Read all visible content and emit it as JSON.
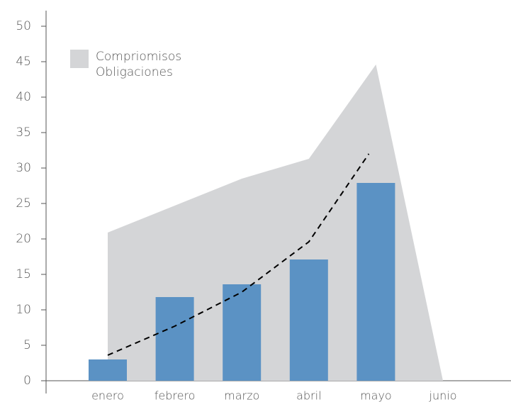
{
  "chart_data": {
    "type": "bar",
    "categories": [
      "enero",
      "febrero",
      "marzo",
      "abril",
      "mayo",
      "junio"
    ],
    "series": [
      {
        "name": "Compriomisos",
        "type": "area",
        "color": "#d4d5d7",
        "values": [
          20.9,
          24.7,
          28.5,
          31.3,
          44.6,
          0
        ]
      },
      {
        "name": "Obligaciones",
        "type": "bar",
        "color": "#5b92c4",
        "values": [
          3,
          11.8,
          13.6,
          17.1,
          27.9,
          null
        ]
      }
    ],
    "trend": {
      "color": "#000000",
      "values": [
        3.6,
        7.7,
        12.5,
        19.6,
        32,
        null
      ]
    },
    "legend_color": "#d4d5d7",
    "ylim": [
      0,
      50
    ],
    "yticks": [
      0,
      5,
      10,
      15,
      20,
      25,
      30,
      35,
      40,
      45,
      50
    ]
  }
}
